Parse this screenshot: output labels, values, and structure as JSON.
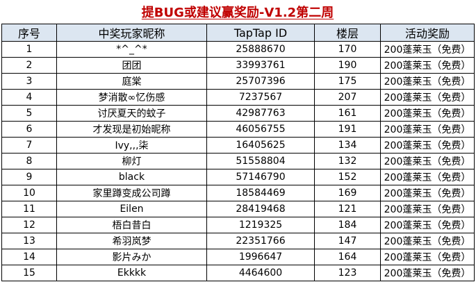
{
  "title": "提BUG或建议赢奖励-V1.2第二周",
  "headers": [
    "序号",
    "中奖玩家昵称",
    "TapTap ID",
    "楼层",
    "活动奖励"
  ],
  "rows": [
    [
      "1",
      "*^_^*",
      "25888670",
      "170",
      "200蓬莱玉（免费）"
    ],
    [
      "2",
      "团团",
      "33993761",
      "190",
      "200蓬莱玉（免费）"
    ],
    [
      "3",
      "庭棠",
      "25707396",
      "175",
      "200蓬莱玉（免费）"
    ],
    [
      "4",
      "梦消散∞忆伤感",
      "7237567",
      "207",
      "200蓬莱玉（免费）"
    ],
    [
      "5",
      "讨厌夏天的蚊子",
      "42987763",
      "161",
      "200蓬莱玉（免费）"
    ],
    [
      "6",
      "才发现是初始昵称",
      "46056755",
      "191",
      "200蓬莱玉（免费）"
    ],
    [
      "7",
      "Ivy,,,柒",
      "16405625",
      "134",
      "200蓬莱玉（免费）"
    ],
    [
      "8",
      "柳灯",
      "51558804",
      "132",
      "200蓬莱玉（免费）"
    ],
    [
      "9",
      "black",
      "57146790",
      "152",
      "200蓬莱玉（免费）"
    ],
    [
      "10",
      "家里蹲变成公司蹲",
      "18584469",
      "169",
      "200蓬莱玉（免费）"
    ],
    [
      "11",
      "Eilen",
      "28419468",
      "121",
      "200蓬莱玉（免费）"
    ],
    [
      "12",
      "梧白昔白",
      "1219325",
      "184",
      "200蓬莱玉（免费）"
    ],
    [
      "13",
      "希羽岚梦",
      "22351766",
      "147",
      "200蓬莱玉（免费）"
    ],
    [
      "14",
      "影片みか",
      "1996647",
      "164",
      "200蓬莱玉（免费）"
    ],
    [
      "15",
      "Ekkkk",
      "4464600",
      "123",
      "200蓬莱玉（免费）"
    ]
  ],
  "colors": {
    "title": "#c00000",
    "header_bg": "#dce6f1",
    "border": "#000000"
  }
}
